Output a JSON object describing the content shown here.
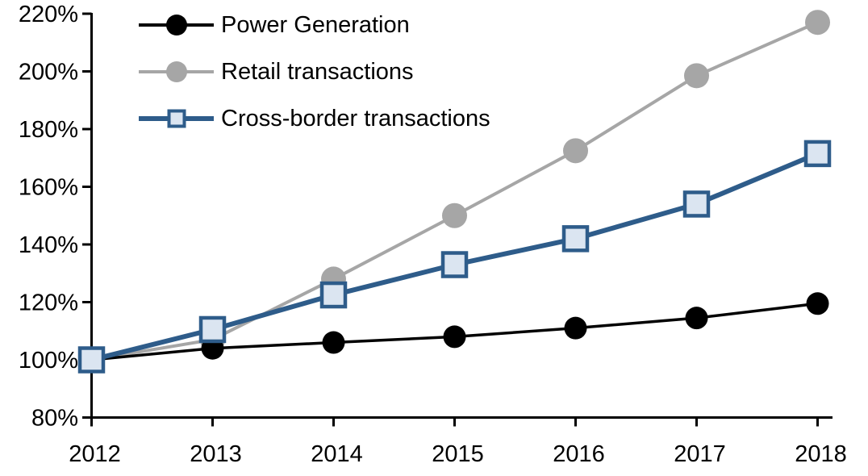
{
  "chart_data": {
    "type": "line",
    "title": "",
    "x_categories": [
      "2012",
      "2013",
      "2014",
      "2015",
      "2016",
      "2017",
      "2018"
    ],
    "y_axis": {
      "ticks": [
        "80%",
        "100%",
        "120%",
        "140%",
        "160%",
        "180%",
        "200%",
        "220%"
      ],
      "min": 80,
      "max": 220,
      "step": 20,
      "unit": "%"
    },
    "grid": "off",
    "legend_position": "top-left-inside",
    "series": [
      {
        "name": "Power Generation",
        "line_color": "#000000",
        "marker": "circle",
        "marker_fill": "#000000",
        "values": [
          100,
          104,
          106,
          108,
          111,
          114.5,
          119.5
        ]
      },
      {
        "name": "Retail transactions",
        "line_color": "#a6a6a6",
        "marker": "circle",
        "marker_fill": "#a6a6a6",
        "values": [
          100,
          107,
          128,
          150,
          172.5,
          198.5,
          217
        ]
      },
      {
        "name": "Cross-border transactions",
        "line_color": "#2e5c8a",
        "marker": "square",
        "marker_fill": "#dbe5f1",
        "values": [
          100,
          110.5,
          122.5,
          133,
          142,
          154,
          171.5
        ]
      }
    ]
  },
  "colors": {
    "background": "#ffffff",
    "axis": "#000000",
    "text": "#000000"
  }
}
